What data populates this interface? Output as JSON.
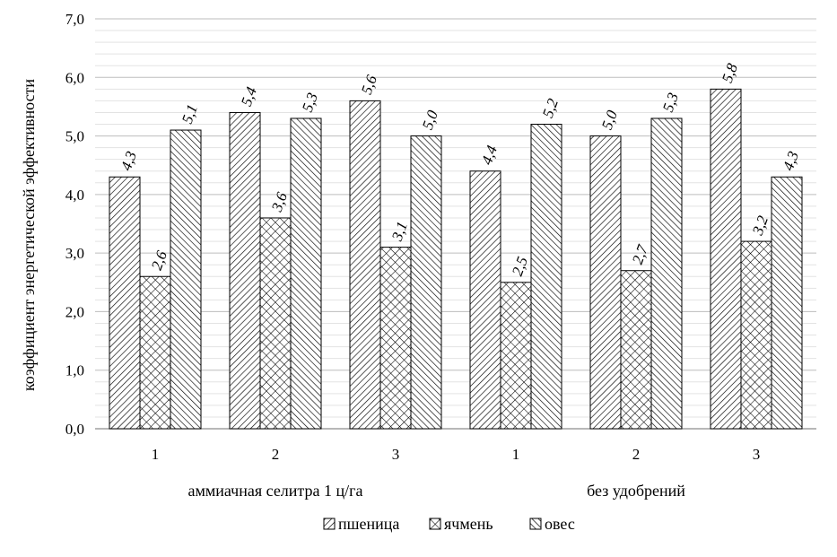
{
  "chart_data": {
    "type": "bar",
    "title": "",
    "ylabel": "коэффициент энергетической эффективности",
    "ylim": [
      0,
      7
    ],
    "y_ticks": [
      "0,0",
      "1,0",
      "2,0",
      "3,0",
      "4,0",
      "5,0",
      "6,0",
      "7,0"
    ],
    "grid": true,
    "legend_position": "bottom",
    "groups": [
      {
        "label": "аммиачная селитра 1 ц/га",
        "categories": [
          "1",
          "2",
          "3"
        ]
      },
      {
        "label": "без удобрений",
        "categories": [
          "1",
          "2",
          "3"
        ]
      }
    ],
    "categories": [
      "1",
      "2",
      "3",
      "1",
      "2",
      "3"
    ],
    "series": [
      {
        "name": "пшеница",
        "pattern": "diag-dense",
        "values": [
          4.3,
          5.4,
          5.6,
          4.4,
          5.0,
          5.8
        ],
        "labels": [
          "4,3",
          "5,4",
          "5,6",
          "4,4",
          "5,0",
          "5,8"
        ]
      },
      {
        "name": "ячмень",
        "pattern": "crosshatch",
        "values": [
          2.6,
          3.6,
          3.1,
          2.5,
          2.7,
          3.2
        ],
        "labels": [
          "2,6",
          "3,6",
          "3,1",
          "2,5",
          "2,7",
          "3,2"
        ]
      },
      {
        "name": "овес",
        "pattern": "diag-wide",
        "values": [
          5.1,
          5.3,
          5.0,
          5.2,
          5.3,
          4.3
        ],
        "labels": [
          "5,1",
          "5,3",
          "5,0",
          "5,2",
          "5,3",
          "4,3"
        ]
      }
    ]
  }
}
